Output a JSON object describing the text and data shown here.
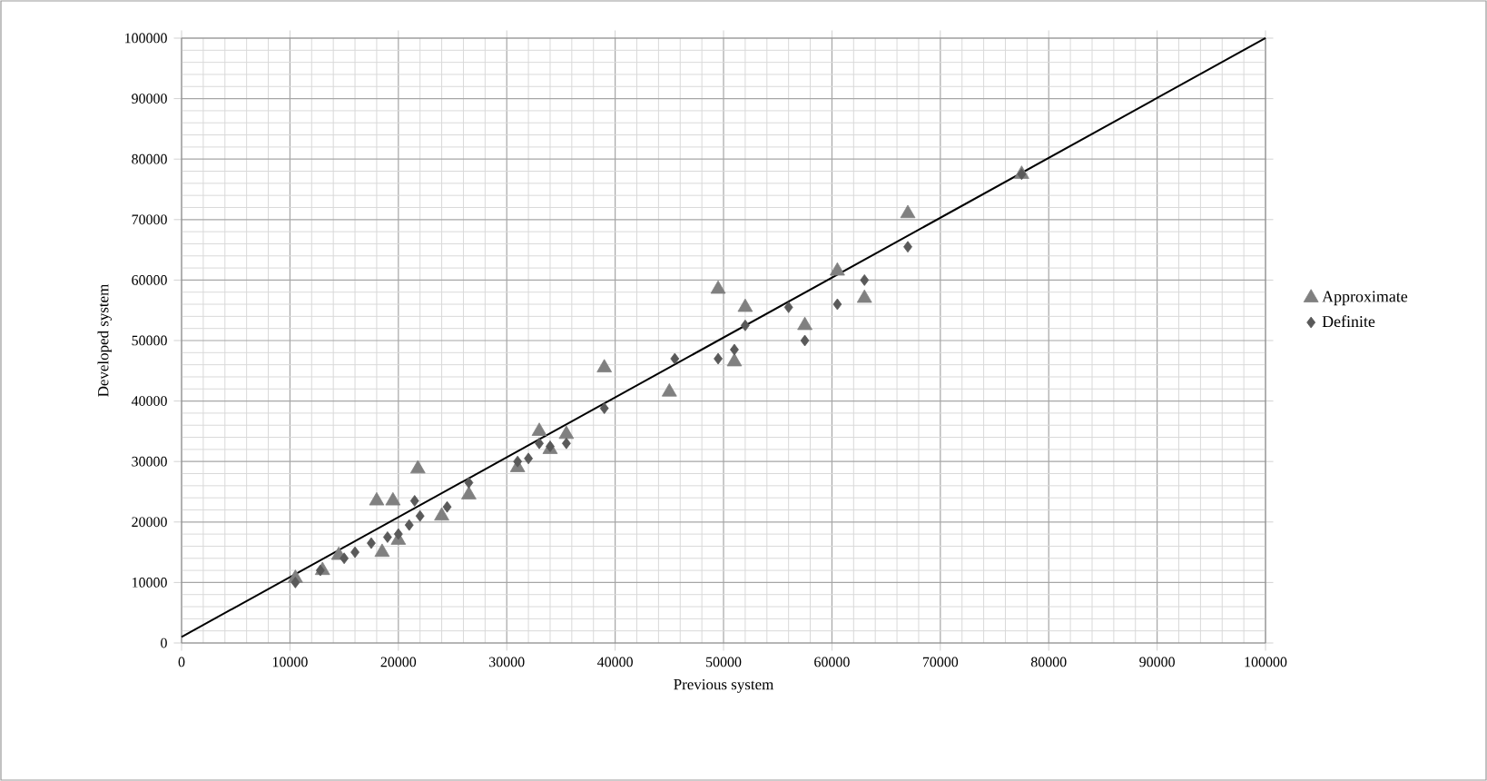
{
  "chart_data": {
    "type": "scatter",
    "xlabel": "Previous system",
    "ylabel": "Developed system",
    "xlim": [
      0,
      100000
    ],
    "ylim": [
      0,
      100000
    ],
    "xticks": [
      0,
      10000,
      20000,
      30000,
      40000,
      50000,
      60000,
      70000,
      80000,
      90000,
      100000
    ],
    "yticks": [
      0,
      10000,
      20000,
      30000,
      40000,
      50000,
      60000,
      70000,
      80000,
      90000,
      100000
    ],
    "grid": true,
    "legend": "right",
    "series": [
      {
        "name": "Approximate",
        "color": "#808080",
        "marker": "triangle",
        "x": [
          10500,
          13000,
          14500,
          18000,
          19500,
          21800,
          18500,
          20000,
          24000,
          26500,
          31000,
          33000,
          34000,
          35500,
          39000,
          45000,
          49500,
          51000,
          52000,
          57500,
          60500,
          63000,
          67000,
          77500
        ],
        "values": [
          10700,
          12000,
          14500,
          23500,
          23500,
          28800,
          15000,
          17000,
          21000,
          24500,
          29000,
          35000,
          32000,
          34500,
          45500,
          41500,
          58500,
          46500,
          55500,
          52500,
          61500,
          57000,
          71000,
          77500
        ]
      },
      {
        "name": "Definite",
        "color": "#595959",
        "marker": "diamond",
        "x": [
          10500,
          12800,
          15000,
          16000,
          17500,
          19000,
          20000,
          21000,
          21500,
          22000,
          24500,
          26500,
          31000,
          32000,
          33000,
          34000,
          35500,
          39000,
          45500,
          49500,
          51000,
          52000,
          56000,
          57500,
          60500,
          63000,
          67000,
          77500
        ],
        "values": [
          10000,
          12000,
          14000,
          15000,
          16500,
          17500,
          18000,
          19500,
          23500,
          21000,
          22500,
          26500,
          30000,
          30500,
          33000,
          32500,
          33000,
          38800,
          47000,
          47000,
          48500,
          52500,
          55500,
          50000,
          56000,
          60000,
          65500,
          77500
        ]
      },
      {
        "type": "line",
        "color": "#000000",
        "marker": "none",
        "x": [
          0,
          100000
        ],
        "values": [
          1000,
          100000
        ]
      }
    ]
  }
}
